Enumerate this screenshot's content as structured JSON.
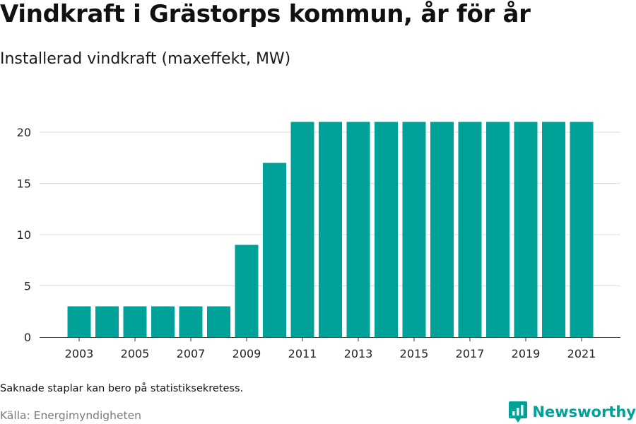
{
  "colors": {
    "bar": "#00a199",
    "grid": "#dddddd",
    "axis": "#333333",
    "tick_text": "#222222",
    "source_text": "#7a7a7a",
    "brand": "#00a199"
  },
  "footer": {
    "note": "Saknade staplar kan bero på statistiksekretess.",
    "source": "Källa: Energimyndigheten",
    "brand_name": "Newsworthy",
    "brand_icon": "newsworthy-logo-icon"
  },
  "chart_data": {
    "type": "bar",
    "title": "Vindkraft i Grästorps kommun, år för år",
    "subtitle": "Installerad vindkraft (maxeffekt, MW)",
    "xlabel": "",
    "ylabel": "",
    "categories": [
      "2003",
      "2004",
      "2005",
      "2006",
      "2007",
      "2008",
      "2009",
      "2010",
      "2011",
      "2012",
      "2013",
      "2014",
      "2015",
      "2016",
      "2017",
      "2018",
      "2019",
      "2020",
      "2021"
    ],
    "values": [
      3,
      3,
      3,
      3,
      3,
      3,
      9,
      17,
      21,
      21,
      21,
      21,
      21,
      21,
      21,
      21,
      21,
      21,
      21
    ],
    "x_tick_labels": [
      "2003",
      "2005",
      "2007",
      "2009",
      "2011",
      "2013",
      "2015",
      "2017",
      "2019",
      "2021"
    ],
    "y_ticks": [
      0,
      5,
      10,
      15,
      20
    ],
    "ylim": [
      0,
      22
    ],
    "grid": true,
    "legend": "none"
  }
}
